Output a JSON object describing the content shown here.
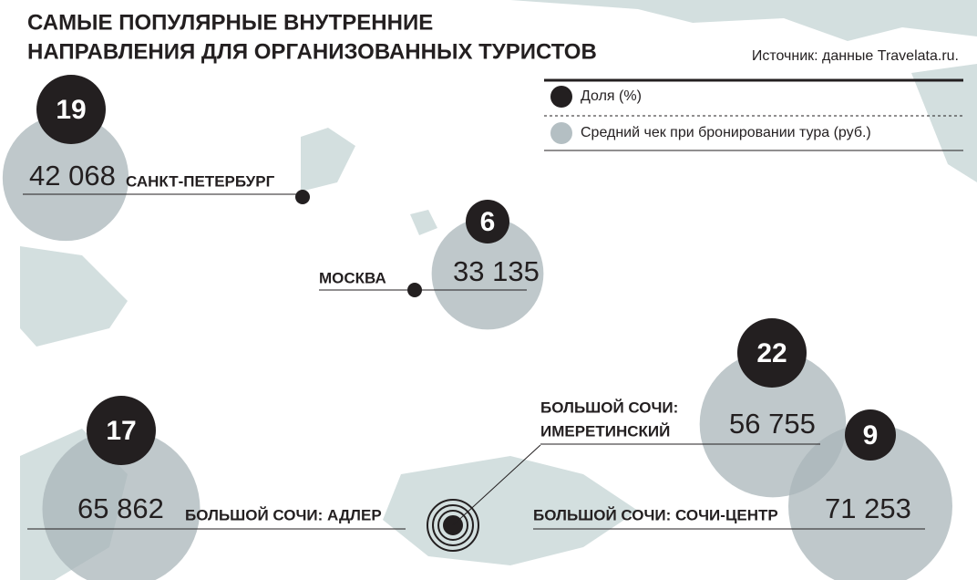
{
  "header": {
    "title": [
      "САМЫЕ ПОПУЛЯРНЫЕ ВНУТРЕННИЕ",
      "НАПРАВЛЕНИЯ ДЛЯ ОРГАНИЗОВАННЫХ ТУРИСТОВ"
    ],
    "source": "Источник: данные Travelata.ru."
  },
  "legend": {
    "share": "Доля (%)",
    "check": "Средний чек при бронировании тура (руб.)"
  },
  "destinations": [
    {
      "name": [
        "САНКТ-ПЕТЕРБУРГ"
      ],
      "share": 19,
      "check": {
        "value": 42068,
        "label": "42 068"
      }
    },
    {
      "name": [
        "МОСКВА"
      ],
      "share": 6,
      "check": {
        "value": 33135,
        "label": "33 135"
      }
    },
    {
      "name": [
        "БОЛЬШОЙ СОЧИ:",
        "ИМЕРЕТИНСКИЙ"
      ],
      "share": 22,
      "check": {
        "value": 56755,
        "label": "56 755"
      }
    },
    {
      "name": [
        "БОЛЬШОЙ СОЧИ: АДЛЕР"
      ],
      "share": 17,
      "check": {
        "value": 65862,
        "label": "65 862"
      }
    },
    {
      "name": [
        "БОЛЬШОЙ СОЧИ: СОЧИ-ЦЕНТР"
      ],
      "share": 9,
      "check": {
        "value": 71253,
        "label": "71 253"
      }
    }
  ]
}
